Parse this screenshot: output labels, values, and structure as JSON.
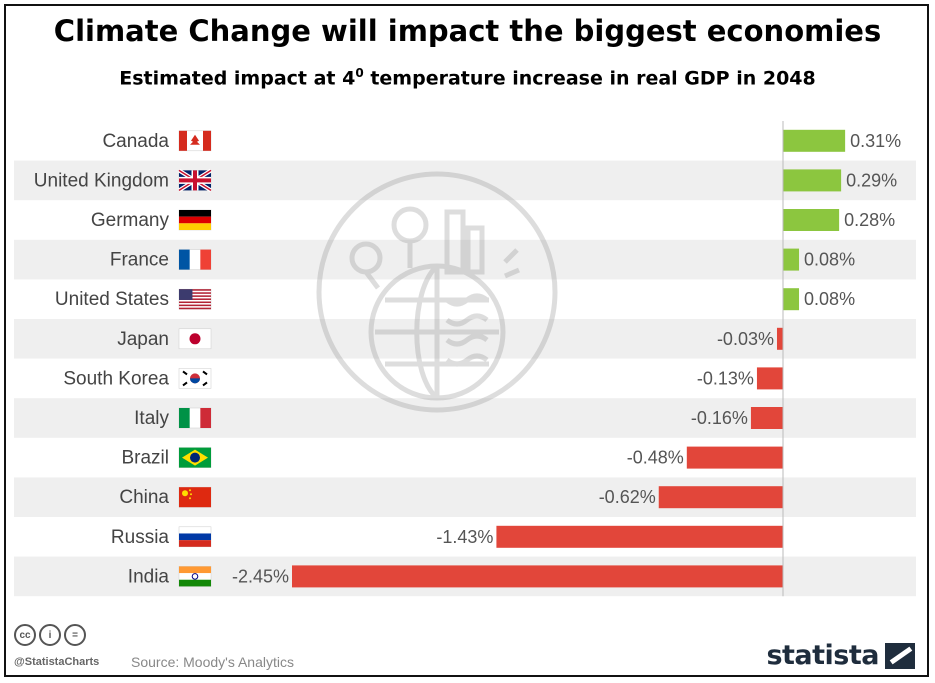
{
  "chart_data": {
    "type": "bar",
    "orientation": "horizontal",
    "title": "Climate Change will impact the biggest economies",
    "subtitle_prefix": "Estimated impact at 4",
    "subtitle_sup": "0",
    "subtitle_suffix": " temperature increase in real GDP in 2048",
    "categories": [
      "Canada",
      "United Kingdom",
      "Germany",
      "France",
      "United States",
      "Japan",
      "South Korea",
      "Italy",
      "Brazil",
      "China",
      "Russia",
      "India"
    ],
    "values": [
      0.31,
      0.29,
      0.28,
      0.08,
      0.08,
      -0.03,
      -0.13,
      -0.16,
      -0.48,
      -0.62,
      -1.43,
      -2.45
    ],
    "value_labels": [
      "0.31%",
      "0.29%",
      "0.28%",
      "0.08%",
      "0.08%",
      "-0.03%",
      "-0.13%",
      "-0.16%",
      "-0.48%",
      "-0.62%",
      "-1.43%",
      "-2.45%"
    ],
    "flags": [
      "canada-flag-icon",
      "uk-flag-icon",
      "germany-flag-icon",
      "france-flag-icon",
      "usa-flag-icon",
      "japan-flag-icon",
      "south-korea-flag-icon",
      "italy-flag-icon",
      "brazil-flag-icon",
      "china-flag-icon",
      "russia-flag-icon",
      "india-flag-icon"
    ],
    "colors": {
      "positive": "#8cc63f",
      "negative": "#e2463a",
      "row_alt": "#efefef"
    },
    "xlim": [
      -2.45,
      0.31
    ],
    "xlabel": "",
    "ylabel": ""
  },
  "footer": {
    "handle": "@StatistaCharts",
    "source": "Source: Moody's Analytics",
    "brand": "statista",
    "license_icons": [
      "cc-icon",
      "by-icon",
      "nd-icon"
    ]
  }
}
